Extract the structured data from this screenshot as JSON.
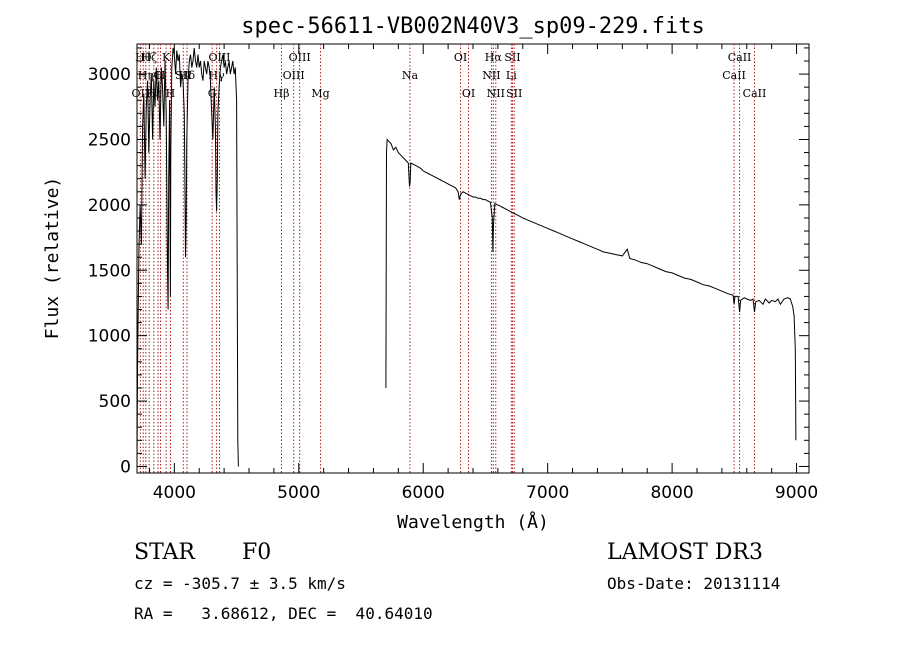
{
  "chart_data": {
    "type": "line",
    "title": "spec-56611-VB002N40V3_sp09-229.fits",
    "xlabel": "Wavelength (Å)",
    "ylabel": "Flux (relative)",
    "xlim": [
      3700,
      9100
    ],
    "ylim": [
      -50,
      3230
    ],
    "xticks": [
      4000,
      5000,
      6000,
      7000,
      8000,
      9000
    ],
    "yticks": [
      0,
      500,
      1000,
      1500,
      2000,
      2500,
      3000
    ],
    "xtick_labels": [
      "4000",
      "5000",
      "6000",
      "7000",
      "8000",
      "9000"
    ],
    "ytick_labels": [
      "0",
      "500",
      "1000",
      "1500",
      "2000",
      "2500",
      "3000"
    ],
    "line_color": "#000000",
    "marker_color": "#b02020",
    "series": [
      {
        "name": "flux",
        "segments": [
          [
            [
              3700,
              0
            ],
            [
              3705,
              800
            ],
            [
              3715,
              1650
            ],
            [
              3725,
              2000
            ],
            [
              3735,
              1700
            ],
            [
              3745,
              2600
            ],
            [
              3755,
              2850
            ],
            [
              3765,
              2200
            ],
            [
              3775,
              2750
            ],
            [
              3785,
              2950
            ],
            [
              3795,
              2400
            ],
            [
              3805,
              2800
            ],
            [
              3815,
              3000
            ],
            [
              3825,
              2500
            ],
            [
              3835,
              2950
            ],
            [
              3845,
              2750
            ],
            [
              3855,
              3050
            ],
            [
              3865,
              2800
            ],
            [
              3875,
              2950
            ],
            [
              3885,
              2500
            ],
            [
              3895,
              3050
            ],
            [
              3905,
              2900
            ],
            [
              3915,
              2600
            ],
            [
              3925,
              3100
            ],
            [
              3935,
              2700
            ],
            [
              3945,
              1500
            ],
            [
              3950,
              1200
            ],
            [
              3955,
              2200
            ],
            [
              3962,
              2800
            ],
            [
              3968,
              1300
            ],
            [
              3972,
              2400
            ],
            [
              3980,
              3050
            ],
            [
              3990,
              3200
            ],
            [
              4000,
              3150
            ],
            [
              4010,
              3000
            ],
            [
              4020,
              3180
            ],
            [
              4030,
              3100
            ],
            [
              4040,
              3150
            ],
            [
              4050,
              2900
            ],
            [
              4060,
              3000
            ],
            [
              4070,
              2950
            ],
            [
              4080,
              2700
            ],
            [
              4085,
              2200
            ],
            [
              4090,
              1600
            ],
            [
              4095,
              1900
            ],
            [
              4100,
              2500
            ],
            [
              4110,
              2950
            ],
            [
              4120,
              3100
            ],
            [
              4130,
              3150
            ],
            [
              4140,
              3050
            ],
            [
              4150,
              3100
            ],
            [
              4160,
              3200
            ],
            [
              4170,
              3100
            ],
            [
              4180,
              3050
            ],
            [
              4190,
              3150
            ],
            [
              4200,
              3050
            ],
            [
              4210,
              3100
            ],
            [
              4220,
              3000
            ],
            [
              4230,
              2950
            ],
            [
              4240,
              3100
            ],
            [
              4250,
              3050
            ],
            [
              4260,
              3000
            ],
            [
              4270,
              3100
            ],
            [
              4280,
              3050
            ],
            [
              4290,
              2950
            ],
            [
              4300,
              2700
            ],
            [
              4310,
              2500
            ],
            [
              4320,
              2900
            ],
            [
              4330,
              2600
            ],
            [
              4335,
              2100
            ],
            [
              4340,
              1950
            ],
            [
              4345,
              2200
            ],
            [
              4350,
              2700
            ],
            [
              4360,
              2900
            ],
            [
              4370,
              3050
            ],
            [
              4380,
              3100
            ],
            [
              4390,
              3150
            ],
            [
              4400,
              3050
            ],
            [
              4410,
              3100
            ],
            [
              4420,
              3000
            ],
            [
              4430,
              3050
            ],
            [
              4440,
              3100
            ],
            [
              4450,
              3000
            ],
            [
              4460,
              3050
            ],
            [
              4470,
              3100
            ],
            [
              4480,
              3000
            ],
            [
              4490,
              3050
            ],
            [
              4500,
              2800
            ],
            [
              4505,
              1500
            ],
            [
              4510,
              200
            ],
            [
              4515,
              0
            ]
          ],
          [
            [
              5700,
              600
            ],
            [
              5702,
              1200
            ],
            [
              5705,
              2400
            ],
            [
              5710,
              2500
            ],
            [
              5720,
              2490
            ],
            [
              5740,
              2470
            ],
            [
              5760,
              2420
            ],
            [
              5780,
              2440
            ],
            [
              5800,
              2400
            ],
            [
              5820,
              2380
            ],
            [
              5840,
              2360
            ],
            [
              5860,
              2340
            ],
            [
              5880,
              2320
            ],
            [
              5890,
              2140
            ],
            [
              5895,
              2180
            ],
            [
              5900,
              2320
            ],
            [
              5920,
              2310
            ],
            [
              5940,
              2300
            ],
            [
              5960,
              2290
            ],
            [
              5980,
              2280
            ],
            [
              6000,
              2260
            ],
            [
              6020,
              2250
            ],
            [
              6040,
              2240
            ],
            [
              6060,
              2230
            ],
            [
              6080,
              2220
            ],
            [
              6100,
              2210
            ],
            [
              6120,
              2200
            ],
            [
              6140,
              2190
            ],
            [
              6160,
              2180
            ],
            [
              6180,
              2170
            ],
            [
              6200,
              2160
            ],
            [
              6220,
              2150
            ],
            [
              6240,
              2140
            ],
            [
              6260,
              2130
            ],
            [
              6280,
              2100
            ],
            [
              6290,
              2040
            ],
            [
              6300,
              2080
            ],
            [
              6320,
              2100
            ],
            [
              6340,
              2090
            ],
            [
              6360,
              2080
            ],
            [
              6380,
              2070
            ],
            [
              6400,
              2060
            ],
            [
              6420,
              2060
            ],
            [
              6440,
              2050
            ],
            [
              6460,
              2050
            ],
            [
              6480,
              2040
            ],
            [
              6500,
              2040
            ],
            [
              6520,
              2030
            ],
            [
              6540,
              2020
            ],
            [
              6555,
              1900
            ],
            [
              6560,
              1640
            ],
            [
              6565,
              1850
            ],
            [
              6575,
              2010
            ],
            [
              6600,
              2000
            ],
            [
              6620,
              1990
            ],
            [
              6640,
              1980
            ],
            [
              6660,
              1970
            ],
            [
              6680,
              1960
            ],
            [
              6700,
              1950
            ],
            [
              6720,
              1940
            ],
            [
              6740,
              1930
            ],
            [
              6760,
              1920
            ],
            [
              6780,
              1910
            ],
            [
              6800,
              1900
            ],
            [
              6850,
              1880
            ],
            [
              6900,
              1860
            ],
            [
              6950,
              1840
            ],
            [
              7000,
              1820
            ],
            [
              7050,
              1800
            ],
            [
              7100,
              1780
            ],
            [
              7150,
              1760
            ],
            [
              7200,
              1740
            ],
            [
              7250,
              1720
            ],
            [
              7300,
              1700
            ],
            [
              7350,
              1680
            ],
            [
              7400,
              1660
            ],
            [
              7450,
              1640
            ],
            [
              7500,
              1630
            ],
            [
              7550,
              1620
            ],
            [
              7600,
              1610
            ],
            [
              7640,
              1660
            ],
            [
              7660,
              1590
            ],
            [
              7700,
              1580
            ],
            [
              7750,
              1560
            ],
            [
              7800,
              1550
            ],
            [
              7850,
              1530
            ],
            [
              7900,
              1510
            ],
            [
              7950,
              1490
            ],
            [
              8000,
              1480
            ],
            [
              8050,
              1460
            ],
            [
              8100,
              1440
            ],
            [
              8150,
              1430
            ],
            [
              8200,
              1410
            ],
            [
              8250,
              1390
            ],
            [
              8300,
              1380
            ],
            [
              8350,
              1360
            ],
            [
              8400,
              1340
            ],
            [
              8450,
              1320
            ],
            [
              8490,
              1310
            ],
            [
              8498,
              1240
            ],
            [
              8505,
              1300
            ],
            [
              8530,
              1300
            ],
            [
              8542,
              1180
            ],
            [
              8550,
              1270
            ],
            [
              8580,
              1290
            ],
            [
              8600,
              1280
            ],
            [
              8630,
              1270
            ],
            [
              8650,
              1280
            ],
            [
              8662,
              1180
            ],
            [
              8672,
              1260
            ],
            [
              8700,
              1270
            ],
            [
              8730,
              1240
            ],
            [
              8750,
              1280
            ],
            [
              8780,
              1250
            ],
            [
              8800,
              1270
            ],
            [
              8830,
              1260
            ],
            [
              8850,
              1280
            ],
            [
              8870,
              1240
            ],
            [
              8900,
              1280
            ],
            [
              8930,
              1290
            ],
            [
              8950,
              1280
            ],
            [
              8970,
              1220
            ],
            [
              8980,
              1150
            ],
            [
              8990,
              900
            ],
            [
              8995,
              200
            ]
          ]
        ]
      }
    ],
    "markers": [
      {
        "wl": 3727,
        "label": "OII",
        "row": 2
      },
      {
        "wl": 3750,
        "label": "Hθ",
        "row": 0
      },
      {
        "wl": 3771,
        "label": "Hη",
        "row": 1
      },
      {
        "wl": 3798,
        "label": "Hζ",
        "row": 0
      },
      {
        "wl": 3835,
        "label": "Hε",
        "row": 2
      },
      {
        "wl": 3869,
        "label": "O",
        "row": 1
      },
      {
        "wl": 3889,
        "label": "H",
        "row": 1
      },
      {
        "wl": 3934,
        "label": "K",
        "row": 0
      },
      {
        "wl": 3969,
        "label": "H",
        "row": 2
      },
      {
        "wl": 4072,
        "label": "SII",
        "row": 1
      },
      {
        "wl": 4102,
        "label": "Hδ",
        "row": 1
      },
      {
        "wl": 4304,
        "label": "G",
        "row": 2
      },
      {
        "wl": 4340,
        "label": "Hγ",
        "row": 1
      },
      {
        "wl": 4363,
        "label": "OIII",
        "row": 0
      },
      {
        "wl": 4861,
        "label": "Hβ",
        "row": 2
      },
      {
        "wl": 4959,
        "label": "OIII",
        "row": 1
      },
      {
        "wl": 5007,
        "label": "OIII",
        "row": 0
      },
      {
        "wl": 5175,
        "label": "Mg",
        "row": 2
      },
      {
        "wl": 5893,
        "label": "Na",
        "row": 1
      },
      {
        "wl": 6300,
        "label": "OI",
        "row": 0
      },
      {
        "wl": 6364,
        "label": "OI",
        "row": 2
      },
      {
        "wl": 6548,
        "label": "NII",
        "row": 1
      },
      {
        "wl": 6563,
        "label": "Hα",
        "row": 0
      },
      {
        "wl": 6583,
        "label": "NII",
        "row": 2
      },
      {
        "wl": 6708,
        "label": "Li",
        "row": 1
      },
      {
        "wl": 6717,
        "label": "SII",
        "row": 0
      },
      {
        "wl": 6731,
        "label": "SII",
        "row": 2
      },
      {
        "wl": 8498,
        "label": "CaII",
        "row": 1
      },
      {
        "wl": 8542,
        "label": "CaII",
        "row": 0
      },
      {
        "wl": 8662,
        "label": "CaII",
        "row": 2
      }
    ]
  },
  "info": {
    "class_label": "STAR",
    "subclass_label": "F0",
    "survey": "LAMOST DR3",
    "cz": "cz = -305.7 ± 3.5 km/s",
    "obs_date": "Obs-Date: 20131114",
    "radec": "RA =   3.68612, DEC =  40.64010"
  }
}
